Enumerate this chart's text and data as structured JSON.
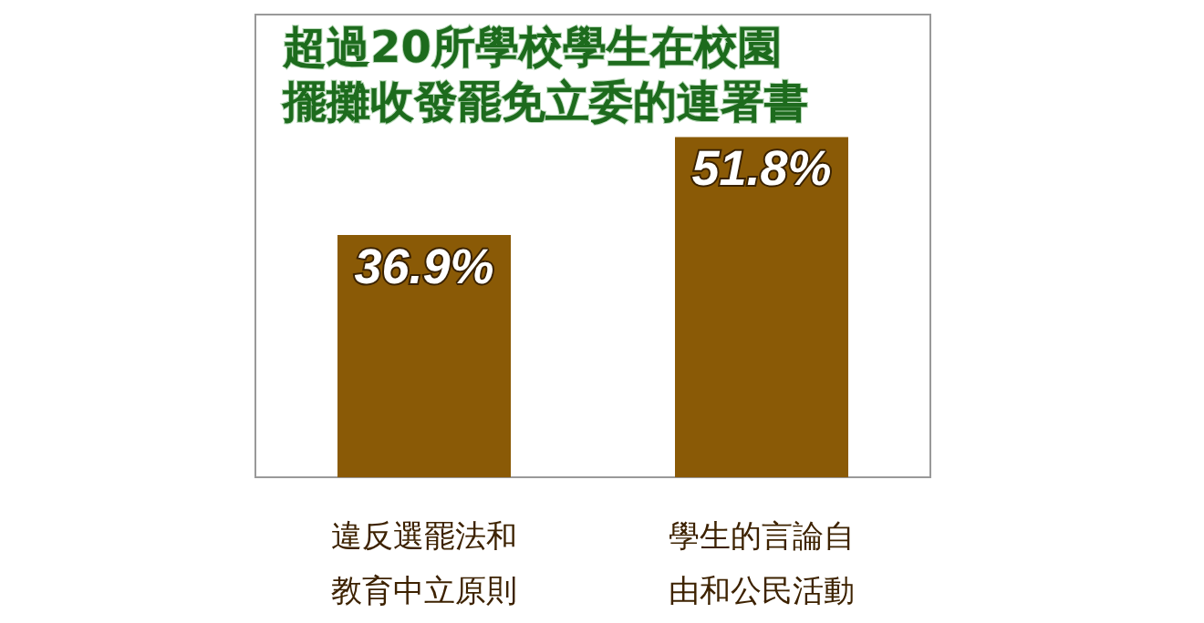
{
  "chart_data": {
    "type": "bar",
    "title": "超過20所學校學生在校園擺攤收發罷免立委的連署書",
    "categories": [
      "違反選罷法和教育中立原則",
      "學生的言論自由和公民活動"
    ],
    "values": [
      36.9,
      51.8
    ],
    "value_labels": [
      "36.9%",
      "51.8%"
    ],
    "color": "#8a5a06"
  }
}
